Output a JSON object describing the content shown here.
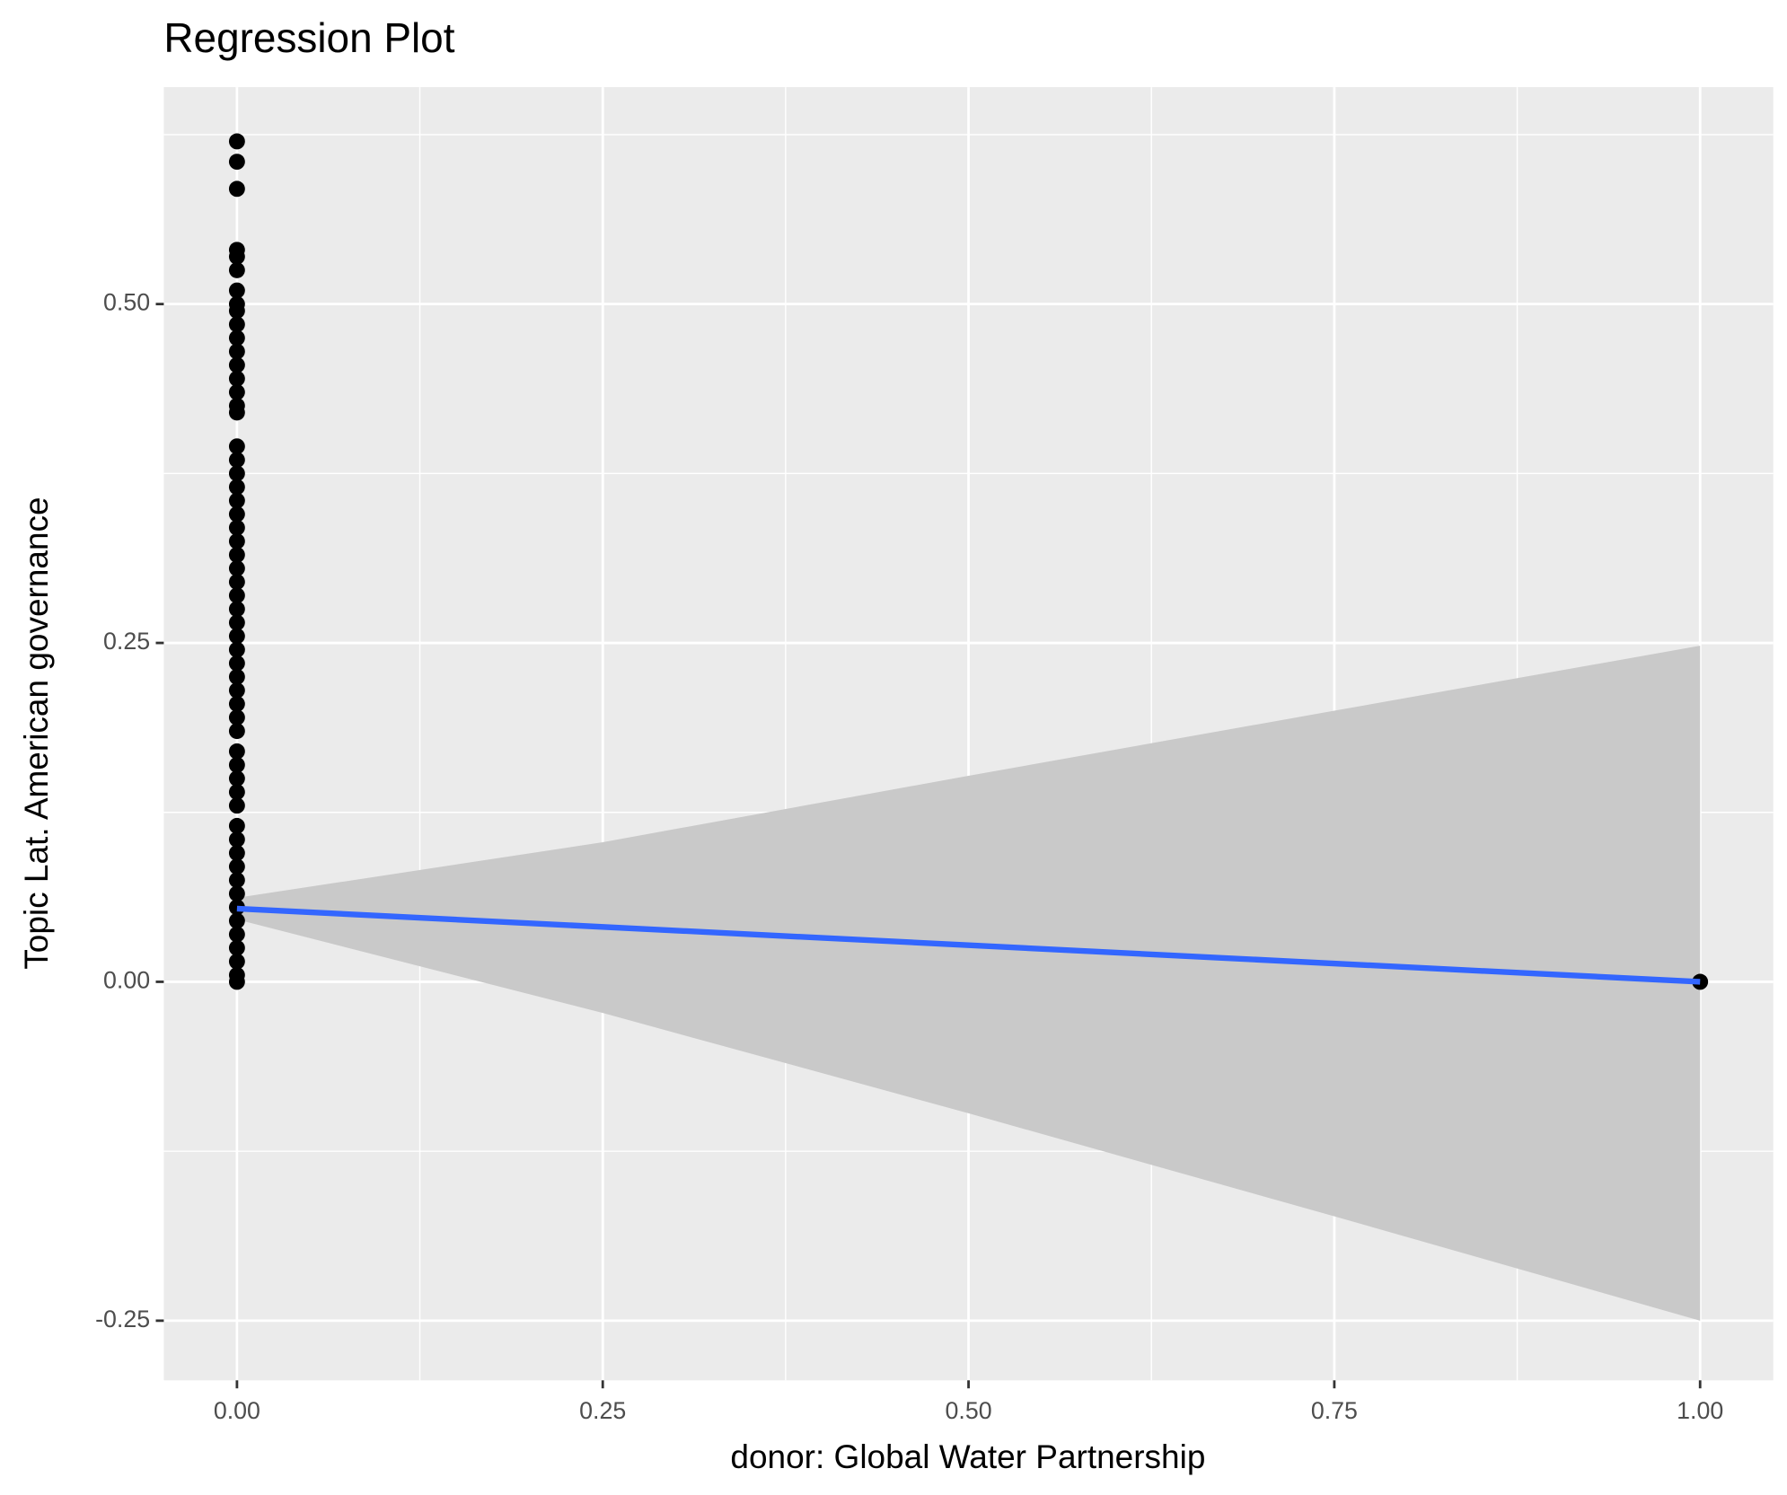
{
  "chart_data": {
    "type": "scatter",
    "title": "Regression Plot",
    "x_label": "donor: Global Water Partnership",
    "y_label": "Topic Lat. American governance",
    "xlim": [
      -0.05,
      1.05
    ],
    "ylim": [
      -0.294,
      0.66
    ],
    "xticks": [
      {
        "value": 0,
        "label": "0.00"
      },
      {
        "value": 0.25,
        "label": "0.25"
      },
      {
        "value": 0.5,
        "label": "0.50"
      },
      {
        "value": 0.75,
        "label": "0.75"
      },
      {
        "value": 1,
        "label": "1.00"
      }
    ],
    "yticks": [
      {
        "value": -0.25,
        "label": "-0.25"
      },
      {
        "value": 0,
        "label": "0.00"
      },
      {
        "value": 0.25,
        "label": "0.25"
      },
      {
        "value": 0.5,
        "label": "0.50"
      }
    ],
    "xminor": [
      0.125,
      0.375,
      0.625,
      0.875
    ],
    "yminor": [
      -0.125,
      0.125,
      0.375,
      0.625
    ],
    "grid": true,
    "points": {
      "color": "#000000",
      "x": [
        0,
        0,
        0,
        0,
        0,
        0,
        0,
        0,
        0,
        0,
        0,
        0,
        0,
        0,
        0,
        0,
        0,
        0,
        0,
        0,
        0,
        0,
        0,
        0,
        0,
        0,
        0,
        0,
        0,
        0,
        0,
        0,
        0,
        0,
        0,
        0,
        0,
        0,
        0,
        0,
        0,
        0,
        0,
        0,
        0,
        0,
        0,
        0,
        0,
        0,
        0,
        0,
        0,
        0,
        0,
        0,
        0,
        1
      ],
      "y": [
        0.62,
        0.605,
        0.585,
        0.54,
        0.535,
        0.525,
        0.51,
        0.5,
        0.495,
        0.485,
        0.475,
        0.465,
        0.455,
        0.445,
        0.435,
        0.425,
        0.42,
        0.395,
        0.385,
        0.375,
        0.365,
        0.355,
        0.345,
        0.335,
        0.325,
        0.315,
        0.305,
        0.295,
        0.285,
        0.275,
        0.265,
        0.255,
        0.245,
        0.235,
        0.225,
        0.215,
        0.205,
        0.195,
        0.185,
        0.17,
        0.16,
        0.15,
        0.14,
        0.13,
        0.115,
        0.105,
        0.095,
        0.085,
        0.075,
        0.065,
        0.055,
        0.045,
        0.035,
        0.025,
        0.015,
        0.005,
        0,
        0
      ]
    },
    "fit": {
      "color": "#3366ff",
      "x": [
        0,
        1
      ],
      "y": [
        0.054,
        0
      ]
    },
    "band": {
      "color": "#c9c9c9",
      "x": [
        0,
        0.25,
        0.5,
        0.75,
        1
      ],
      "upper": [
        0.062,
        0.103,
        0.152,
        0.2,
        0.248
      ],
      "lower": [
        0.046,
        -0.023,
        -0.097,
        -0.173,
        -0.25
      ]
    }
  }
}
